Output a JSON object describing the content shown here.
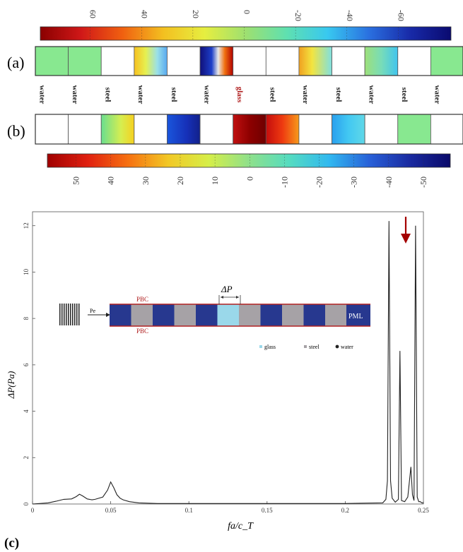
{
  "colorbar_a": {
    "ticks": [
      "60",
      "40",
      "20",
      "0",
      "-20",
      "-40",
      "-60"
    ],
    "colors": [
      "#8a0000",
      "#d01818",
      "#f06010",
      "#f3c020",
      "#e6ee40",
      "#9ee070",
      "#5fe0b0",
      "#38c8f0",
      "#2a70e0",
      "#182aa8",
      "#0a0a70"
    ]
  },
  "colorbar_b": {
    "ticks": [
      "50",
      "40",
      "30",
      "20",
      "10",
      "0",
      "-10",
      "-20",
      "-30",
      "-40",
      "-50"
    ],
    "colors": [
      "#a00000",
      "#e02010",
      "#f67010",
      "#f2c825",
      "#d6ee48",
      "#8fe08a",
      "#55dcc0",
      "#30b8f0",
      "#2860d8",
      "#1a2aa0",
      "#0a0a6a"
    ]
  },
  "row_a": {
    "label": "(a)",
    "cells": [
      {
        "fill": "green"
      },
      {
        "fill": "green"
      },
      {
        "fill": "white"
      },
      {
        "fill": "yellowblue"
      },
      {
        "fill": "white"
      },
      {
        "fill": "bluered"
      },
      {
        "fill": "white"
      },
      {
        "fill": "white"
      },
      {
        "fill": "yellowcyan"
      },
      {
        "fill": "white"
      },
      {
        "fill": "greencyan"
      },
      {
        "fill": "white"
      },
      {
        "fill": "green"
      }
    ]
  },
  "materials": [
    "water",
    "water",
    "steel",
    "water",
    "steel",
    "water",
    "glass",
    "steel",
    "water",
    "steel",
    "water",
    "steel",
    "water"
  ],
  "row_b": {
    "label": "(b)",
    "cells": [
      {
        "fill": "white"
      },
      {
        "fill": "white"
      },
      {
        "fill": "greenyellow"
      },
      {
        "fill": "white"
      },
      {
        "fill": "blue"
      },
      {
        "fill": "white"
      },
      {
        "fill": "darkred"
      },
      {
        "fill": "redorange"
      },
      {
        "fill": "white"
      },
      {
        "fill": "cyan"
      },
      {
        "fill": "white"
      },
      {
        "fill": "green"
      },
      {
        "fill": "white"
      }
    ]
  },
  "chart_data": {
    "type": "line",
    "label": "(c)",
    "xlabel": "fa/c_T",
    "ylabel": "ΔP(Pa)",
    "x_ticks": [
      "0",
      "0.05",
      "0.1",
      "0.15",
      "0.2",
      "0.25"
    ],
    "y_ticks": [
      "0",
      "2",
      "4",
      "6",
      "8",
      "10",
      "12"
    ],
    "xlim": [
      0,
      0.25
    ],
    "ylim": [
      0,
      12.6
    ],
    "series": [
      {
        "x": [
          0.0,
          0.01,
          0.015,
          0.02,
          0.025,
          0.028,
          0.03,
          0.032,
          0.035,
          0.038,
          0.04,
          0.045,
          0.048,
          0.05,
          0.052,
          0.054,
          0.056,
          0.058,
          0.062,
          0.068,
          0.08,
          0.12,
          0.16,
          0.2,
          0.224,
          0.226,
          0.227,
          0.228,
          0.229,
          0.23,
          0.232,
          0.234,
          0.235,
          0.236,
          0.238,
          0.24,
          0.242,
          0.243,
          0.244,
          0.245,
          0.246,
          0.247,
          0.248,
          0.249,
          0.25
        ],
        "y": [
          0.0,
          0.05,
          0.12,
          0.2,
          0.22,
          0.32,
          0.42,
          0.35,
          0.22,
          0.18,
          0.2,
          0.3,
          0.6,
          0.95,
          0.7,
          0.4,
          0.25,
          0.18,
          0.1,
          0.05,
          0.02,
          0.02,
          0.02,
          0.02,
          0.05,
          0.2,
          1.0,
          12.2,
          1.0,
          0.25,
          0.08,
          0.2,
          6.6,
          0.15,
          0.1,
          0.3,
          1.6,
          0.4,
          0.15,
          12.0,
          0.3,
          0.1,
          0.1,
          0.05,
          0.05
        ]
      }
    ]
  },
  "inset": {
    "incident_label": "Pe",
    "pbc_top": "PBC",
    "pbc_bottom": "PBC",
    "delta_label": "ΔP",
    "pml_label": "PML",
    "cells": [
      "water",
      "steel",
      "water",
      "steel",
      "water",
      "glass",
      "steel",
      "water",
      "steel",
      "water",
      "steel",
      "water"
    ],
    "legend": [
      "glass",
      "steel",
      "water"
    ]
  },
  "colors": {
    "accent_arrow": "#a40000",
    "inset_water": "#27388f",
    "inset_steel": "#a6a2a6",
    "inset_glass": "#9ad8ea",
    "pbc_red": "#b02020",
    "glass_text": "#b02020"
  }
}
